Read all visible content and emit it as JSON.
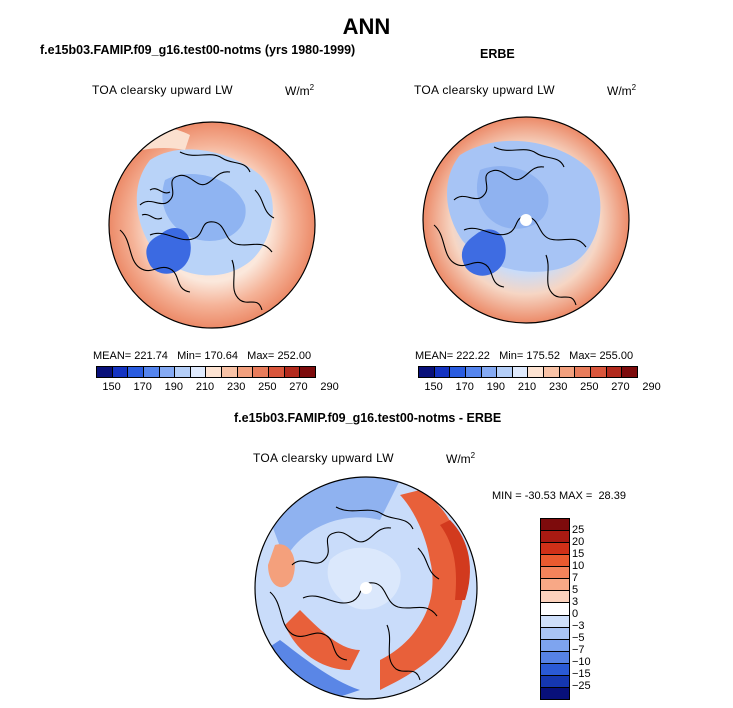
{
  "title": "ANN",
  "panels": [
    {
      "case_title": "f.e15b03.FAMIP.f09_g16.test00-notms (yrs 1980-1999)",
      "field": "TOA clearsky upward LW",
      "units": "W/m",
      "units_sup": "2",
      "stats": {
        "mean_label": "MEAN=",
        "mean": "221.74",
        "min_label": "Min=",
        "min": "170.64",
        "max_label": "Max=",
        "max": "252.00"
      },
      "colorbar_labels": [
        "150",
        "170",
        "190",
        "210",
        "230",
        "250",
        "270",
        "290"
      ]
    },
    {
      "case_title": "ERBE",
      "field": "TOA clearsky upward LW",
      "units": "W/m",
      "units_sup": "2",
      "stats": {
        "mean_label": "MEAN=",
        "mean": "222.22",
        "min_label": "Min=",
        "min": "175.52",
        "max_label": "Max=",
        "max": "255.00"
      },
      "colorbar_labels": [
        "150",
        "170",
        "190",
        "210",
        "230",
        "250",
        "270",
        "290"
      ]
    }
  ],
  "difference": {
    "case_title": "f.e15b03.FAMIP.f09_g16.test00-notms - ERBE",
    "field": "TOA clearsky upward LW",
    "units": "W/m",
    "units_sup": "2",
    "stats": {
      "min_label": "MIN =",
      "min": "-30.53",
      "max_label": "MAX =",
      "max": "28.39"
    },
    "colorbar_labels": [
      "25",
      "20",
      "15",
      "10",
      "7",
      "5",
      "3",
      "0",
      "-3",
      "-5",
      "-7",
      "-10",
      "-15",
      "-25"
    ]
  },
  "colors": {
    "abs_scale": [
      "#08107a",
      "#1433c2",
      "#2a5ce0",
      "#5585ee",
      "#85aaf3",
      "#b5cff8",
      "#dfeafd",
      "#fde3d2",
      "#f8c2a6",
      "#f2a07e",
      "#e87c5b",
      "#d9563c",
      "#b22a1d",
      "#7d0b0c"
    ],
    "diff_scale": [
      "#7d0b0c",
      "#a81a12",
      "#d03018",
      "#ea5a2f",
      "#f3835b",
      "#f8a886",
      "#fcd2bc",
      "#ffffff",
      "#cfe0fb",
      "#a9c4f5",
      "#7ea4ef",
      "#5682e6",
      "#2a5ad6",
      "#1537b0",
      "#08107a"
    ]
  }
}
